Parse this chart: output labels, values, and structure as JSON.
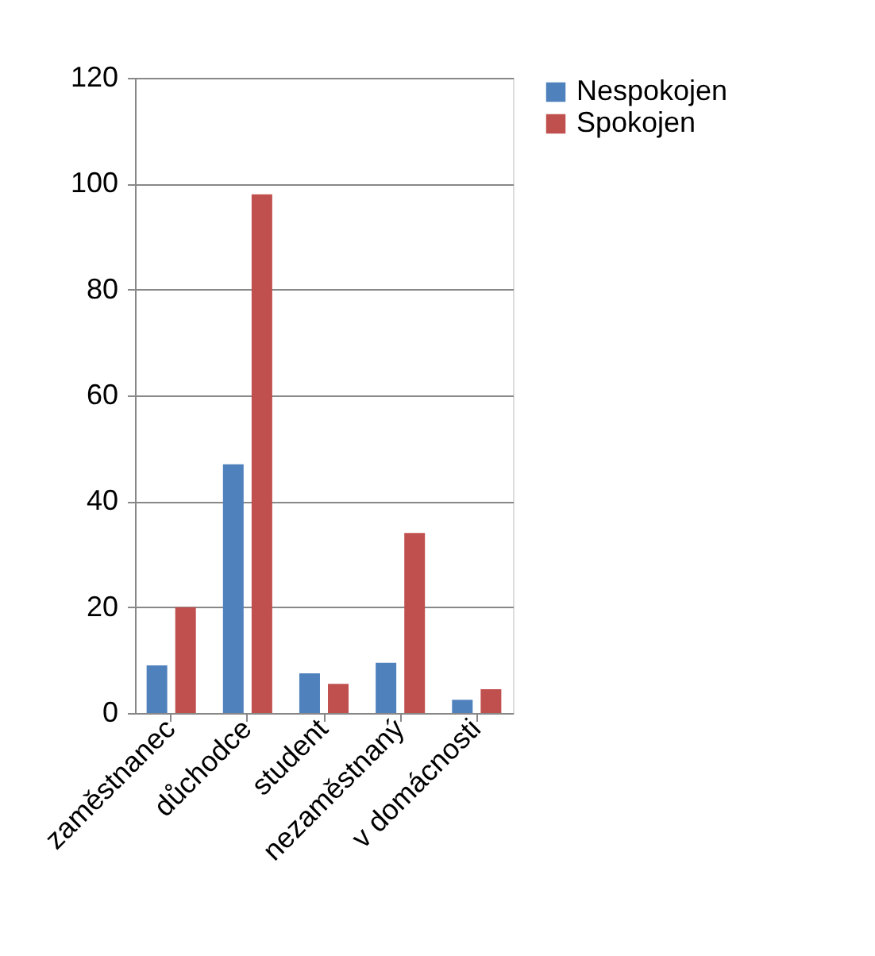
{
  "chart_data": {
    "type": "bar",
    "categories": [
      "zaměstnanec",
      "důchodce",
      "student",
      "nezaměstnaný",
      "v domácnosti"
    ],
    "series": [
      {
        "name": "Nespokojen",
        "color": "#4f81bd",
        "values": [
          9,
          47,
          7.5,
          9.5,
          2.5
        ]
      },
      {
        "name": "Spokojen",
        "color": "#c0504d",
        "values": [
          20,
          98,
          5.5,
          34,
          4.5
        ]
      }
    ],
    "ylim": [
      0,
      120
    ],
    "yticks": [
      0,
      20,
      40,
      60,
      80,
      100,
      120
    ],
    "grid": "y",
    "legend": "right"
  }
}
